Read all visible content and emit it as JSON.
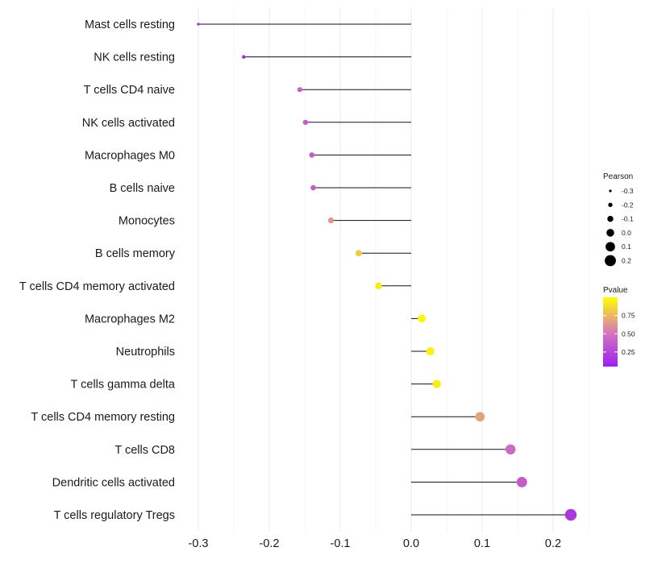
{
  "chart_data": {
    "type": "lollipop",
    "title": "",
    "xlabel": "",
    "ylabel": "",
    "xlim": [
      -0.33,
      0.25
    ],
    "x_ticks": [
      -0.3,
      -0.2,
      -0.1,
      0.0,
      0.1,
      0.2
    ],
    "x_tick_labels": [
      "-0.3",
      "-0.2",
      "-0.1",
      "0.0",
      "0.1",
      "0.2"
    ],
    "grid": true,
    "categories": [
      "Mast cells resting",
      "NK cells resting",
      "T cells CD4 naive",
      "NK cells activated",
      "Macrophages M0",
      "B cells naive",
      "Monocytes",
      "B cells memory",
      "T cells CD4 memory activated",
      "Macrophages M2",
      "Neutrophils",
      "T cells gamma delta",
      "T cells CD4 memory resting",
      "T cells CD8",
      "Dendritic cells activated",
      "T cells regulatory  Tregs"
    ],
    "pearson": [
      -0.3,
      -0.236,
      -0.157,
      -0.149,
      -0.14,
      -0.138,
      -0.113,
      -0.074,
      -0.046,
      0.015,
      0.027,
      0.036,
      0.097,
      0.14,
      0.156,
      0.225
    ],
    "pvalue": [
      0.08,
      0.12,
      0.4,
      0.38,
      0.38,
      0.39,
      0.62,
      0.82,
      0.93,
      0.97,
      0.95,
      0.94,
      0.68,
      0.45,
      0.37,
      0.18
    ],
    "legend_size": {
      "title": "Pearson",
      "entries": [
        "-0.3",
        "-0.2",
        "-0.1",
        "0.0",
        "0.1",
        "0.2"
      ],
      "values": [
        -0.3,
        -0.2,
        -0.1,
        0.0,
        0.1,
        0.2
      ]
    },
    "legend_color": {
      "title": "Pvalue",
      "ticks": [
        "0.75",
        "0.50",
        "0.25"
      ],
      "tick_values": [
        0.75,
        0.5,
        0.25
      ],
      "range": [
        0.05,
        1.0
      ],
      "low_color": "#9b1ff0",
      "high_color": "#ffff00"
    },
    "legend_position": "right"
  }
}
